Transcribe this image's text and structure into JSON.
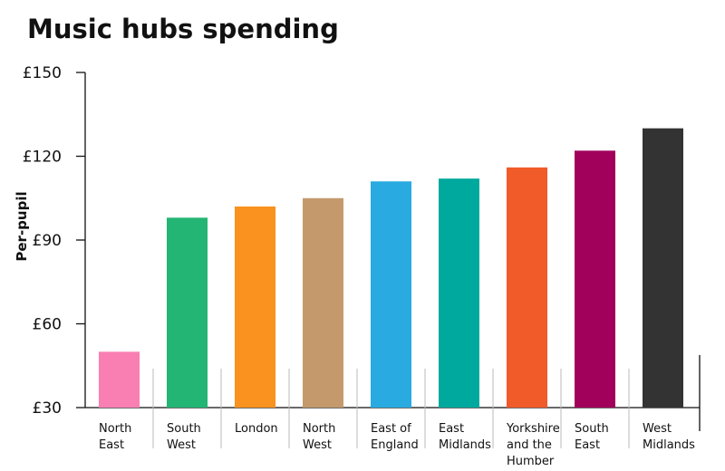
{
  "chart_data": {
    "type": "bar",
    "title": "Music hubs spending",
    "xlabel": "",
    "ylabel": "Per-pupil",
    "ylim": [
      30,
      150
    ],
    "yticks": [
      30,
      60,
      90,
      120,
      150
    ],
    "ytick_labels": [
      "£30",
      "£60",
      "£90",
      "£120",
      "£150"
    ],
    "grid": false,
    "legend": "none",
    "categories": [
      [
        "North",
        "East"
      ],
      [
        "South",
        "West"
      ],
      [
        "London"
      ],
      [
        "North",
        "West"
      ],
      [
        "East of",
        "England"
      ],
      [
        "East",
        "Midlands"
      ],
      [
        "Yorkshire",
        "and the",
        "Humber"
      ],
      [
        "South",
        "East"
      ],
      [
        "West",
        "Midlands"
      ]
    ],
    "values": [
      50,
      98,
      102,
      105,
      111,
      112,
      116,
      122,
      130
    ],
    "colors": [
      "#f97fb3",
      "#23b574",
      "#f9921e",
      "#c49a6c",
      "#29abe2",
      "#00a99d",
      "#f15a29",
      "#a1005b",
      "#333333"
    ],
    "axis_color": "#111111",
    "separator_color": "#bbbbbb"
  }
}
